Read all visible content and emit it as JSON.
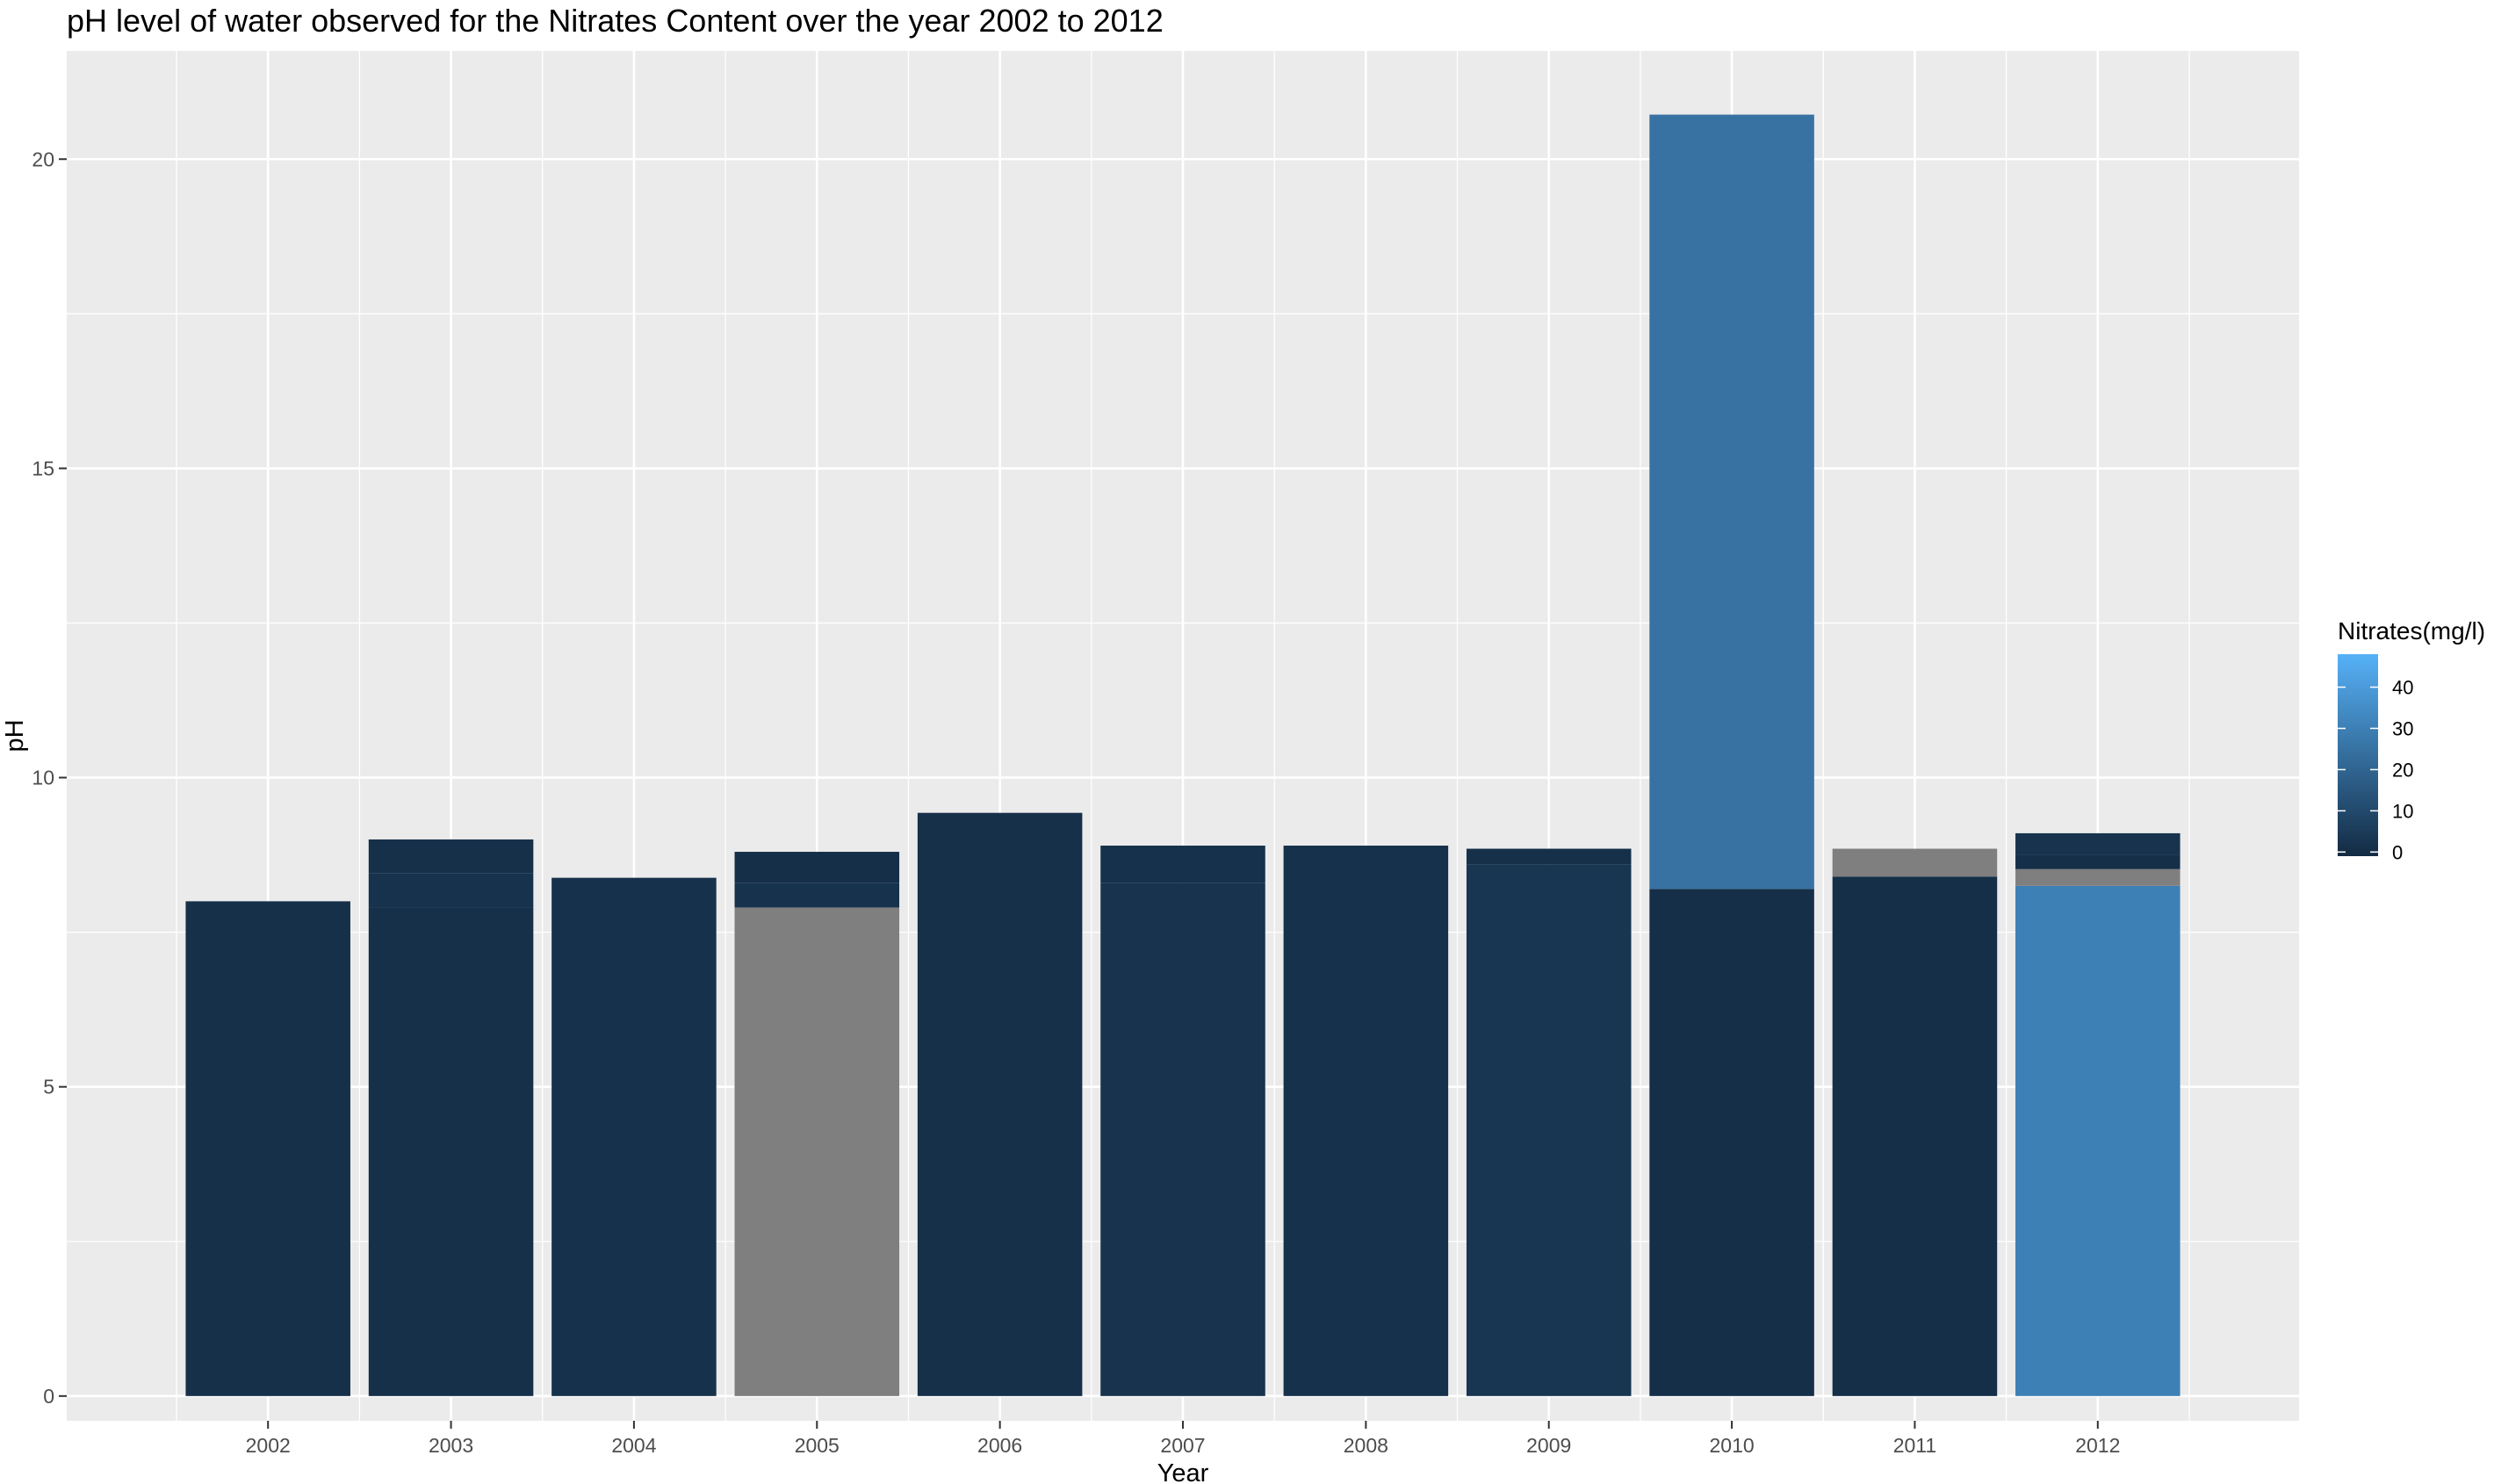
{
  "chart_data": {
    "type": "bar",
    "title": "pH level of water observed for the Nitrates Content over the year 2002 to 2012",
    "xlabel": "Year",
    "ylabel": "pH",
    "categories": [
      "2002",
      "2003",
      "2004",
      "2005",
      "2006",
      "2007",
      "2008",
      "2009",
      "2010",
      "2011",
      "2012"
    ],
    "values": [
      8.0,
      9.0,
      8.38,
      8.8,
      9.43,
      8.9,
      8.9,
      8.85,
      20.72,
      8.85,
      9.1
    ],
    "segments": [
      [
        {
          "from": 0,
          "to": 8.0,
          "nitrates": 1.0
        }
      ],
      [
        {
          "from": 0,
          "to": 7.9,
          "nitrates": 1.0
        },
        {
          "from": 7.9,
          "to": 8.45,
          "nitrates": 1.5
        },
        {
          "from": 8.45,
          "to": 9.0,
          "nitrates": 1.0
        }
      ],
      [
        {
          "from": 0,
          "to": 8.38,
          "nitrates": 1.2
        }
      ],
      [
        {
          "from": 0,
          "to": 7.9,
          "nitrates": null
        },
        {
          "from": 7.9,
          "to": 8.3,
          "nitrates": 1.5
        },
        {
          "from": 8.3,
          "to": 8.8,
          "nitrates": 0.5
        }
      ],
      [
        {
          "from": 0,
          "to": 9.43,
          "nitrates": 1.0
        }
      ],
      [
        {
          "from": 0,
          "to": 8.3,
          "nitrates": 1.8
        },
        {
          "from": 8.3,
          "to": 8.9,
          "nitrates": 1.2
        }
      ],
      [
        {
          "from": 0,
          "to": 8.9,
          "nitrates": 1.2
        }
      ],
      [
        {
          "from": 0,
          "to": 8.6,
          "nitrates": 3.0
        },
        {
          "from": 8.6,
          "to": 8.85,
          "nitrates": 1.0
        }
      ],
      [
        {
          "from": 0,
          "to": 8.2,
          "nitrates": 0.5
        },
        {
          "from": 8.2,
          "to": 20.72,
          "nitrates": 25.0
        }
      ],
      [
        {
          "from": 0,
          "to": 8.4,
          "nitrates": 0.5
        },
        {
          "from": 8.4,
          "to": 8.85,
          "nitrates": null
        }
      ],
      [
        {
          "from": 0,
          "to": 8.25,
          "nitrates": 30.0
        },
        {
          "from": 8.25,
          "to": 8.52,
          "nitrates": null
        },
        {
          "from": 8.52,
          "to": 8.75,
          "nitrates": 0.3
        },
        {
          "from": 8.75,
          "to": 9.1,
          "nitrates": 2.0
        }
      ]
    ],
    "ylim": [
      -0.4,
      21.75
    ],
    "yticks": [
      0,
      5,
      10,
      15,
      20
    ],
    "grid": true,
    "legend": {
      "title": "Nitrates(mg/l)",
      "placement": "right",
      "breaks": [
        40,
        30,
        20,
        10,
        0
      ],
      "range": [
        -1,
        48
      ],
      "low_color": "#132B43",
      "high_color": "#56B1F7",
      "na_color": "#7F7F7F"
    },
    "panel_background": "#EBEBEB",
    "gridline_color": "#FFFFFF"
  }
}
